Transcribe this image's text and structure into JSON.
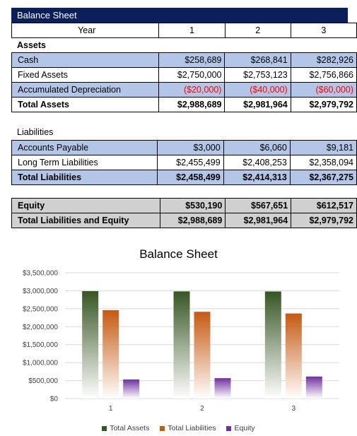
{
  "title": "Balance Sheet",
  "header": {
    "label": "Year",
    "years": [
      "1",
      "2",
      "3"
    ]
  },
  "assets": {
    "heading": "Assets",
    "rows": [
      {
        "label": "Cash",
        "values": [
          "$258,689",
          "$268,841",
          "$282,926"
        ]
      },
      {
        "label": "Fixed Assets",
        "values": [
          "$2,750,000",
          "$2,753,123",
          "$2,756,866"
        ]
      },
      {
        "label": "Accumulated Depreciation",
        "values": [
          "($20,000)",
          "($40,000)",
          "($60,000)"
        ]
      }
    ],
    "total": {
      "label": "Total Assets",
      "values": [
        "$2,988,689",
        "$2,981,964",
        "$2,979,792"
      ]
    }
  },
  "liabilities": {
    "heading": "Liabilities",
    "rows": [
      {
        "label": "Accounts Payable",
        "values": [
          "$3,000",
          "$6,060",
          "$9,181"
        ]
      },
      {
        "label": "Long Term Liabilities",
        "values": [
          "$2,455,499",
          "$2,408,253",
          "$2,358,094"
        ]
      }
    ],
    "total": {
      "label": "Total Liabilities",
      "values": [
        "$2,458,499",
        "$2,414,313",
        "$2,367,275"
      ]
    }
  },
  "equity": {
    "equity_row": {
      "label": "Equity",
      "values": [
        "$530,190",
        "$567,651",
        "$612,517"
      ]
    },
    "total": {
      "label": "Total Liabilities and Equity",
      "values": [
        "$2,988,689",
        "$2,981,964",
        "$2,979,792"
      ]
    }
  },
  "colors": {
    "header_bg": "#0b1f5c",
    "highlight_blue": "#b4c6e7",
    "highlight_grey": "#d0d0d0",
    "negative": "#ff0000"
  },
  "chart_data": {
    "type": "bar",
    "title": "Balance Sheet",
    "categories": [
      "1",
      "2",
      "3"
    ],
    "series": [
      {
        "name": "Total Assets",
        "values": [
          2988689,
          2981964,
          2979792
        ],
        "color": "#375623"
      },
      {
        "name": "Total Liabilities",
        "values": [
          2458499,
          2414313,
          2367275
        ],
        "color": "#c55a11"
      },
      {
        "name": "Equity",
        "values": [
          530190,
          567651,
          612517
        ],
        "color": "#7030a0"
      }
    ],
    "ylim": [
      0,
      3500000
    ],
    "yticks": [
      "$0",
      "$500,000",
      "$1,000,000",
      "$1,500,000",
      "$2,000,000",
      "$2,500,000",
      "$3,000,000",
      "$3,500,000"
    ],
    "grid": true,
    "legend": "bottom"
  }
}
